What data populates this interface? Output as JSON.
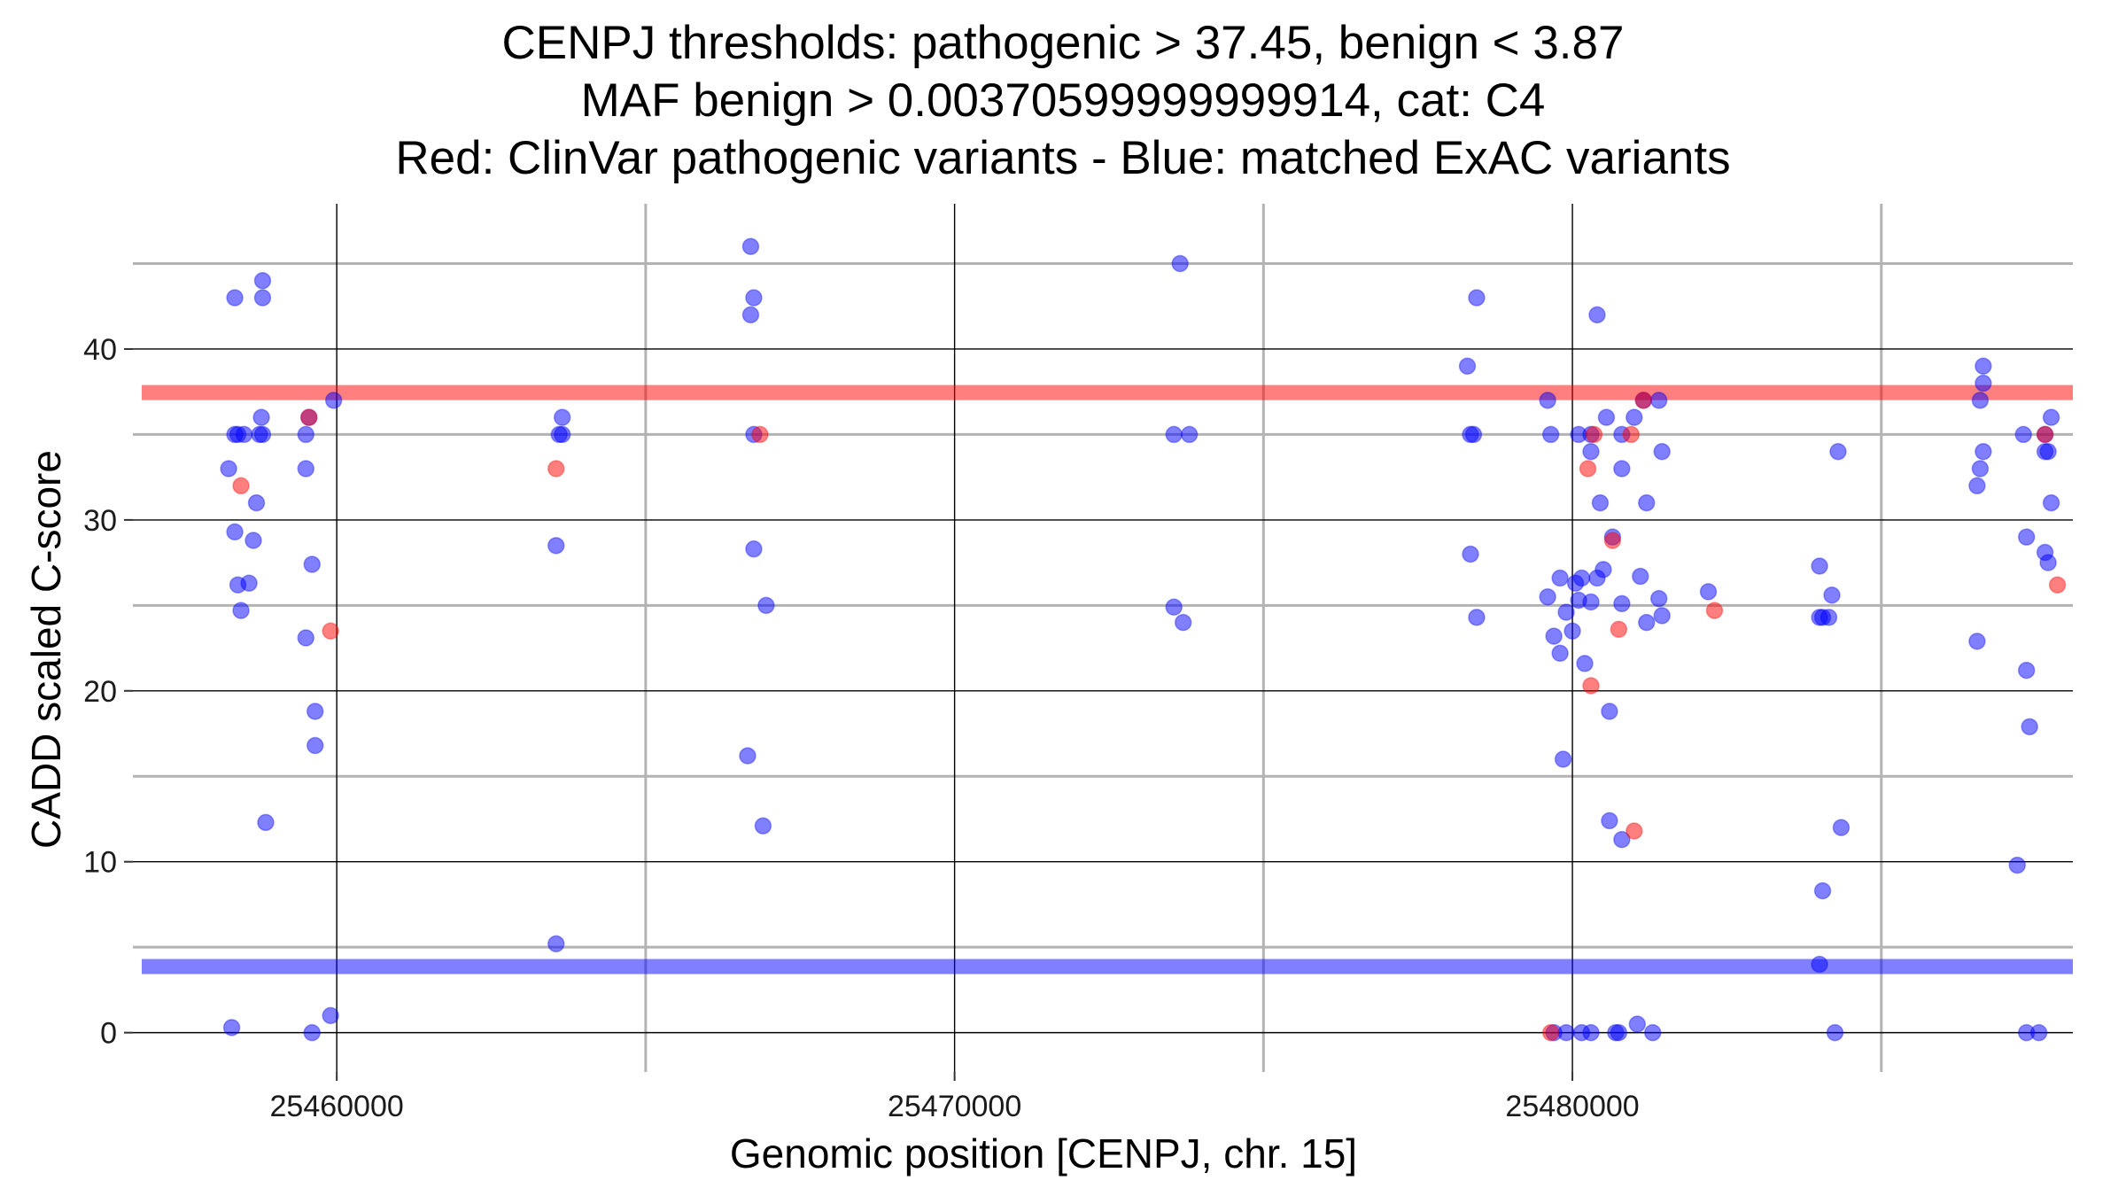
{
  "chart_data": {
    "type": "scatter",
    "title_lines": [
      "CENPJ thresholds: pathogenic > 37.45, benign < 3.87",
      "MAF benign > 0.00370599999999914, cat: C4",
      "Red: ClinVar pathogenic variants - Blue: matched ExAC variants"
    ],
    "xlabel": "Genomic position [CENPJ, chr. 15]",
    "ylabel": "CADD scaled C-score",
    "xlim": [
      25456700,
      25488100
    ],
    "ylim": [
      -2.3,
      48.5
    ],
    "x_ticks": [
      25460000,
      25470000,
      25480000
    ],
    "x_tick_labels": [
      "25460000",
      "25470000",
      "25480000"
    ],
    "x_minor_grid": [
      25465000,
      25475000,
      25485000
    ],
    "y_ticks": [
      0,
      10,
      20,
      30,
      40
    ],
    "y_tick_labels": [
      "0",
      "10",
      "20",
      "30",
      "40"
    ],
    "y_minor_grid": [
      5,
      15,
      25,
      35,
      45
    ],
    "grid": true,
    "thresholds": [
      {
        "value": 37.45,
        "color": "#ff0000"
      },
      {
        "value": 3.87,
        "color": "#0000ff"
      }
    ],
    "colors": {
      "pathogenic": "#ff0000",
      "benign": "#0000ff",
      "major_grid": "#000000",
      "minor_grid": "#b3b3b3"
    },
    "series": [
      {
        "color": "#0000ff",
        "points": [
          [
            25458350,
            43
          ],
          [
            25458350,
            35
          ],
          [
            25458400,
            35
          ],
          [
            25458500,
            35
          ],
          [
            25458750,
            35
          ],
          [
            25458800,
            35
          ],
          [
            25458780,
            36
          ],
          [
            25458800,
            43
          ],
          [
            25458800,
            44
          ],
          [
            25458250,
            33
          ],
          [
            25458350,
            29.3
          ],
          [
            25458400,
            26.2
          ],
          [
            25458580,
            26.3
          ],
          [
            25458450,
            24.7
          ],
          [
            25458650,
            28.8
          ],
          [
            25458700,
            31
          ],
          [
            25458850,
            12.3
          ],
          [
            25458300,
            0.3
          ],
          [
            25459500,
            35
          ],
          [
            25459550,
            36
          ],
          [
            25459500,
            33
          ],
          [
            25459600,
            27.4
          ],
          [
            25459500,
            23.1
          ],
          [
            25459650,
            18.8
          ],
          [
            25459650,
            16.8
          ],
          [
            25459600,
            0
          ],
          [
            25459900,
            1
          ],
          [
            25459950,
            37
          ],
          [
            25463650,
            36
          ],
          [
            25463600,
            35
          ],
          [
            25463650,
            35
          ],
          [
            25463550,
            28.5
          ],
          [
            25463550,
            5.2
          ],
          [
            25466750,
            43
          ],
          [
            25466700,
            42
          ],
          [
            25466750,
            35
          ],
          [
            25466700,
            46
          ],
          [
            25466750,
            28.3
          ],
          [
            25466950,
            25
          ],
          [
            25466650,
            16.2
          ],
          [
            25466900,
            12.1
          ],
          [
            25473550,
            35
          ],
          [
            25473650,
            45
          ],
          [
            25473800,
            35
          ],
          [
            25473550,
            24.9
          ],
          [
            25473700,
            24
          ],
          [
            25478350,
            35
          ],
          [
            25478450,
            43
          ],
          [
            25478300,
            39
          ],
          [
            25478350,
            28
          ],
          [
            25478450,
            24.3
          ],
          [
            25478400,
            35
          ],
          [
            25479600,
            37
          ],
          [
            25479650,
            35
          ],
          [
            25480100,
            35
          ],
          [
            25480300,
            35
          ],
          [
            25480300,
            34
          ],
          [
            25480400,
            42
          ],
          [
            25480550,
            36
          ],
          [
            25480800,
            35
          ],
          [
            25480800,
            33
          ],
          [
            25481000,
            36
          ],
          [
            25481150,
            37
          ],
          [
            25481400,
            37
          ],
          [
            25481450,
            34
          ],
          [
            25480650,
            29
          ],
          [
            25480450,
            31
          ],
          [
            25481200,
            31
          ],
          [
            25479600,
            25.5
          ],
          [
            25479800,
            26.6
          ],
          [
            25480050,
            26.3
          ],
          [
            25480150,
            26.6
          ],
          [
            25480100,
            25.3
          ],
          [
            25479900,
            24.6
          ],
          [
            25479700,
            23.2
          ],
          [
            25480000,
            23.5
          ],
          [
            25480300,
            25.2
          ],
          [
            25480400,
            26.6
          ],
          [
            25480500,
            27.1
          ],
          [
            25480800,
            25.1
          ],
          [
            25481100,
            26.7
          ],
          [
            25481200,
            24
          ],
          [
            25481400,
            25.4
          ],
          [
            25481450,
            24.4
          ],
          [
            25482200,
            25.8
          ],
          [
            25479800,
            22.2
          ],
          [
            25480200,
            21.6
          ],
          [
            25480600,
            18.8
          ],
          [
            25479850,
            16
          ],
          [
            25480600,
            12.4
          ],
          [
            25480800,
            11.3
          ],
          [
            25479700,
            0
          ],
          [
            25479900,
            0
          ],
          [
            25480150,
            0
          ],
          [
            25480300,
            0
          ],
          [
            25480700,
            0
          ],
          [
            25480750,
            0
          ],
          [
            25481050,
            0.5
          ],
          [
            25481300,
            0
          ],
          [
            25484000,
            27.3
          ],
          [
            25484000,
            24.3
          ],
          [
            25484050,
            24.3
          ],
          [
            25484150,
            24.3
          ],
          [
            25484200,
            25.6
          ],
          [
            25484300,
            34
          ],
          [
            25484350,
            12
          ],
          [
            25484050,
            8.3
          ],
          [
            25484000,
            4
          ],
          [
            25484250,
            0
          ],
          [
            25486650,
            39
          ],
          [
            25486650,
            38
          ],
          [
            25486600,
            37
          ],
          [
            25486650,
            34
          ],
          [
            25486600,
            33
          ],
          [
            25486550,
            32
          ],
          [
            25486550,
            22.9
          ],
          [
            25487300,
            35
          ],
          [
            25487650,
            35
          ],
          [
            25487750,
            36
          ],
          [
            25487650,
            34
          ],
          [
            25487700,
            34
          ],
          [
            25487650,
            28.1
          ],
          [
            25487700,
            27.5
          ],
          [
            25487750,
            31
          ],
          [
            25487350,
            29
          ],
          [
            25487350,
            21.2
          ],
          [
            25487400,
            17.9
          ],
          [
            25487200,
            9.8
          ],
          [
            25487350,
            0
          ],
          [
            25487550,
            0
          ]
        ]
      },
      {
        "color": "#ff0000",
        "points": [
          [
            25458450,
            32
          ],
          [
            25459550,
            36
          ],
          [
            25459900,
            23.5
          ],
          [
            25463550,
            33
          ],
          [
            25466850,
            35
          ],
          [
            25479650,
            0
          ],
          [
            25480250,
            33
          ],
          [
            25480350,
            35
          ],
          [
            25480300,
            20.3
          ],
          [
            25480650,
            28.8
          ],
          [
            25480950,
            35
          ],
          [
            25480750,
            23.6
          ],
          [
            25481000,
            11.8
          ],
          [
            25481150,
            37
          ],
          [
            25482300,
            24.7
          ],
          [
            25487650,
            35
          ],
          [
            25487850,
            26.2
          ]
        ]
      }
    ]
  }
}
